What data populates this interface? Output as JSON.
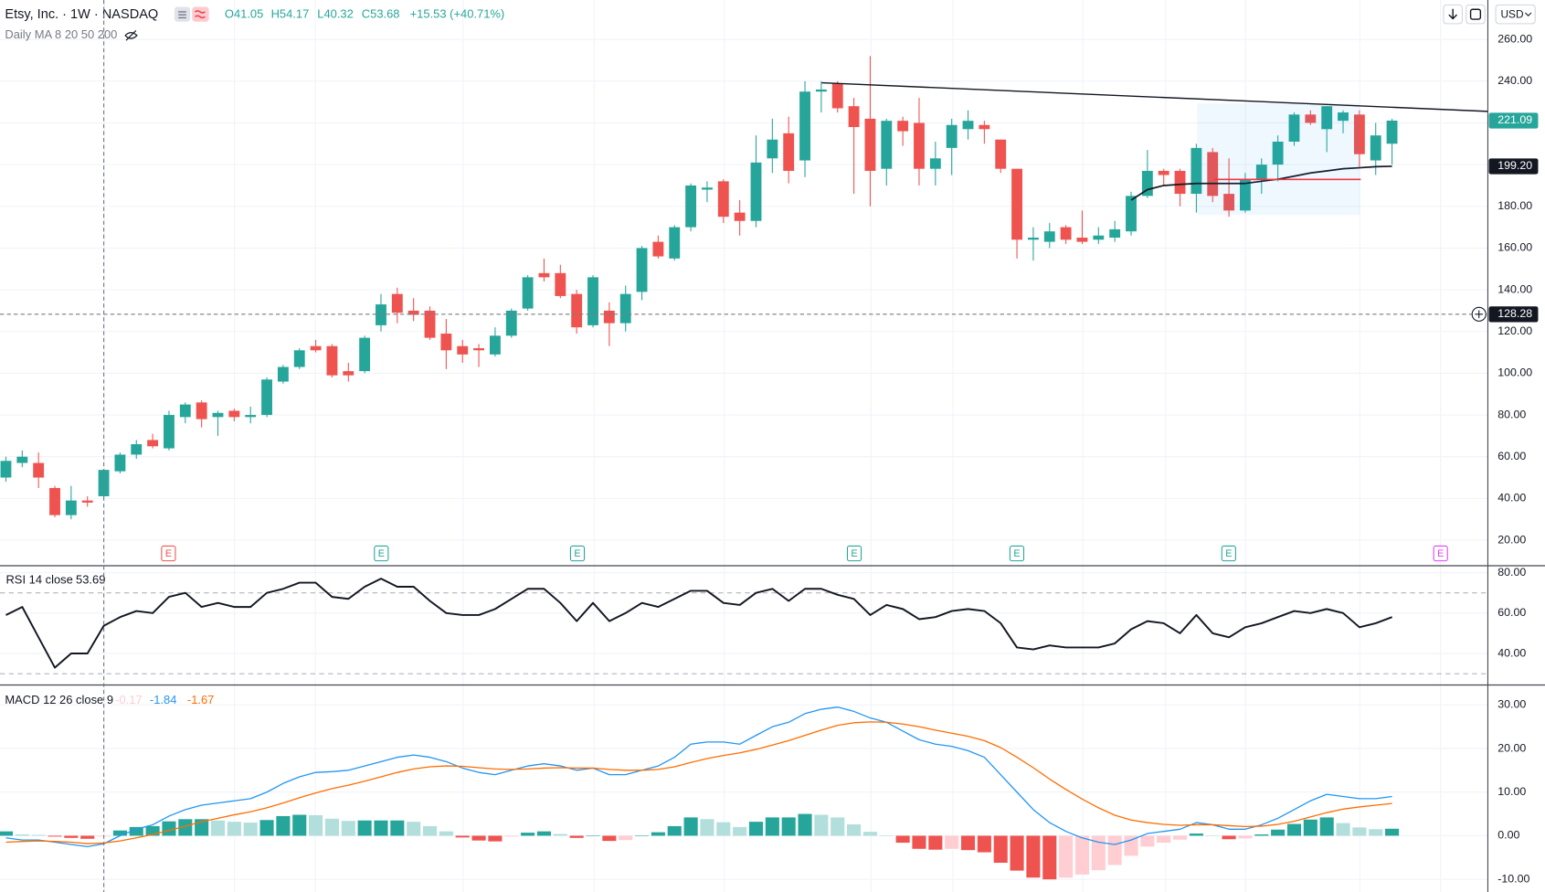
{
  "chart_data": [
    {
      "type": "candlestick",
      "title": "Etsy, Inc. · 1W · NASDAQ",
      "legend": [
        "O41.05",
        "H54.17",
        "L40.32",
        "C53.68",
        "+15.53 (+40.71%)"
      ],
      "currency": "USD",
      "up_color": "#26a69a",
      "down_color": "#ef5350",
      "open": [
        50,
        57,
        57,
        45,
        32,
        39,
        41.05,
        53,
        61,
        68,
        64,
        79,
        86,
        79,
        82,
        79,
        80,
        96,
        103,
        113,
        113,
        101,
        101,
        123,
        138,
        130,
        130,
        119,
        113,
        112,
        109,
        118,
        131,
        148,
        148,
        138,
        123,
        130,
        124,
        139,
        163,
        155,
        170,
        188,
        192,
        177,
        173,
        203,
        215,
        202,
        235,
        239,
        228,
        222,
        198,
        221,
        220,
        198,
        208,
        217,
        219,
        212,
        198,
        164,
        163,
        170,
        165,
        164,
        165,
        168,
        185,
        197,
        197,
        186,
        206,
        186,
        178,
        193,
        200,
        211,
        224,
        217,
        221,
        224,
        202,
        210
      ],
      "high": [
        60,
        63,
        62,
        46,
        46,
        41,
        54.17,
        62,
        68,
        71,
        82,
        86,
        87,
        82,
        83,
        84,
        98,
        104,
        112,
        116,
        114,
        105,
        118,
        138,
        141,
        136,
        132,
        126,
        116,
        114,
        122,
        131,
        147,
        155,
        152,
        140,
        147,
        134,
        142,
        161,
        166,
        171,
        191,
        192,
        193,
        183,
        214,
        222,
        223,
        240,
        240,
        240,
        232,
        252,
        222,
        223,
        232,
        211,
        222,
        226,
        221,
        212,
        198,
        170,
        172,
        171,
        178,
        170,
        173,
        187,
        207,
        198,
        198,
        210,
        208,
        203,
        196,
        203,
        214,
        225,
        226,
        228,
        226,
        226,
        220,
        222
      ],
      "low": [
        48,
        55,
        45,
        31,
        30,
        36,
        40.32,
        52,
        59,
        64,
        63,
        76,
        74,
        70,
        77,
        76,
        79,
        95,
        102,
        110,
        98,
        96,
        100,
        120,
        124,
        125,
        116,
        102,
        105,
        103,
        108,
        117,
        130,
        144,
        136,
        119,
        122,
        113,
        120,
        135,
        155,
        154,
        168,
        182,
        172,
        166,
        170,
        196,
        191,
        194,
        225,
        225,
        186,
        180,
        190,
        209,
        190,
        190,
        195,
        212,
        210,
        196,
        155,
        154,
        160,
        162,
        162,
        162,
        163,
        166,
        184,
        190,
        180,
        177,
        182,
        175,
        177,
        186,
        192,
        209,
        219,
        206,
        215,
        199,
        195,
        200
      ],
      "close": [
        58,
        60,
        50,
        32,
        39,
        38,
        53.68,
        61,
        66,
        65,
        80,
        85,
        78,
        81,
        79,
        80,
        97,
        103,
        111,
        111,
        99,
        99,
        117,
        133,
        129,
        128,
        117,
        111,
        109,
        111,
        118,
        130,
        146,
        146,
        137,
        122,
        146,
        124,
        138,
        160,
        156,
        170,
        190,
        189,
        175,
        173,
        201,
        212,
        197,
        235,
        236,
        227,
        218,
        197,
        221,
        216,
        198,
        203,
        219,
        221,
        217,
        198,
        164,
        165,
        168,
        164,
        163,
        166,
        169,
        185,
        197,
        195,
        186,
        208,
        185,
        178,
        193,
        200,
        211,
        224,
        220,
        228,
        225,
        205,
        214,
        221.09
      ],
      "ma": {
        "name": "Daily MA 8 20 50 200",
        "color": "#131722",
        "last_label": "199.20",
        "values": [
          null,
          null,
          null,
          null,
          null,
          null,
          null,
          null,
          null,
          null,
          null,
          null,
          null,
          null,
          null,
          null,
          null,
          null,
          null,
          null,
          null,
          null,
          null,
          null,
          null,
          null,
          null,
          null,
          null,
          null,
          null,
          null,
          null,
          null,
          null,
          null,
          null,
          null,
          null,
          null,
          null,
          null,
          null,
          null,
          null,
          null,
          null,
          null,
          null,
          null,
          null,
          null,
          null,
          null,
          null,
          null,
          null,
          null,
          null,
          null,
          null,
          null,
          null,
          null,
          null,
          null,
          null,
          null,
          null,
          183,
          188,
          190,
          190.5,
          191,
          191,
          191,
          191,
          192,
          193,
          194.5,
          196,
          197,
          198,
          198.5,
          199,
          199.2
        ]
      },
      "crosshair_price": 128.28,
      "earnings": [
        {
          "label": "E",
          "color": "#ef5350"
        },
        {
          "label": "E",
          "color": "#26a69a"
        },
        {
          "label": "E",
          "color": "#26a69a"
        },
        {
          "label": "E",
          "color": "#26a69a"
        },
        {
          "label": "E",
          "color": "#26a69a"
        },
        {
          "label": "E",
          "color": "#26a69a"
        },
        {
          "label": "E",
          "color": "#e040fb"
        }
      ],
      "ylim": [
        8.2,
        278.9
      ],
      "yticks": [
        {
          "value": 20,
          "label": "20.00"
        },
        {
          "value": 40,
          "label": "40.00"
        },
        {
          "value": 60,
          "label": "60.00"
        },
        {
          "value": 80,
          "label": "80.00"
        },
        {
          "value": 100,
          "label": "100.00"
        },
        {
          "value": 120,
          "label": "120.00"
        },
        {
          "value": 140,
          "label": "140.00"
        },
        {
          "value": 160,
          "label": "160.00"
        },
        {
          "value": 180,
          "label": "180.00"
        },
        {
          "value": 200,
          "label": "200.00"
        },
        {
          "value": 220,
          "label": "220.00"
        },
        {
          "value": 240,
          "label": "240.00"
        },
        {
          "value": 260,
          "label": "260.00"
        }
      ],
      "grid": true
    },
    {
      "type": "line",
      "title": "RSI 14 close",
      "color": "#131722",
      "values": [
        59,
        63,
        48,
        33,
        40,
        40,
        53.69,
        58,
        61,
        60,
        68,
        70,
        63,
        65,
        63,
        63,
        70,
        72,
        75,
        75,
        68,
        67,
        73,
        77,
        73,
        73,
        66,
        60,
        59,
        59,
        62,
        67,
        72,
        72,
        65,
        56,
        65,
        56,
        60,
        65,
        63,
        67,
        71,
        71,
        65,
        64,
        70,
        72,
        66,
        72,
        72,
        69,
        67,
        59,
        64,
        62,
        57,
        58,
        61,
        62,
        61,
        55,
        43,
        42,
        44,
        43,
        43,
        43,
        45,
        52,
        56,
        55,
        50,
        59,
        50,
        48,
        53,
        55,
        58,
        61,
        60,
        62,
        60,
        53,
        55,
        58
      ],
      "levels": [
        70,
        30
      ],
      "ylim": [
        25.4,
        82.9
      ],
      "yticks": [
        {
          "value": 40,
          "label": "40.00"
        },
        {
          "value": 60,
          "label": "60.00"
        },
        {
          "value": 80,
          "label": "80.00"
        }
      ],
      "grid": true
    },
    {
      "type": "combo",
      "title": "MACD 12 26 close 9",
      "histogram": {
        "colors": [
          "#26a69a",
          "#b2dfdb",
          "#ef5350",
          "#ffcdd2"
        ],
        "values": [
          1.0,
          0.3,
          0.2,
          -0.2,
          -0.5,
          -0.7,
          -0.17,
          1.2,
          2.0,
          2.2,
          3.3,
          3.8,
          3.8,
          3.5,
          3.2,
          3.0,
          3.6,
          4.5,
          4.8,
          4.7,
          3.9,
          3.4,
          3.5,
          3.5,
          3.5,
          3.2,
          2.2,
          1.0,
          -0.4,
          -1.1,
          -1.3,
          -0.2,
          0.7,
          1.0,
          0.4,
          -0.5,
          0,
          -1.2,
          -1.0,
          0,
          0.8,
          2.2,
          4.2,
          3.8,
          3.1,
          2.0,
          3.2,
          4.2,
          4.2,
          5.0,
          4.8,
          4.2,
          2.6,
          0.9,
          0,
          -1.6,
          -3.0,
          -3.2,
          -3.0,
          -3.3,
          -3.8,
          -6.2,
          -8.0,
          -9.6,
          -10.0,
          -9.6,
          -8.9,
          -7.9,
          -6.7,
          -4.6,
          -2.5,
          -1.6,
          -0.9,
          0.5,
          0,
          -0.8,
          -0.6,
          0.3,
          1.4,
          2.7,
          3.7,
          4.2,
          2.9,
          1.9,
          1.5,
          1.6
        ]
      },
      "macd": {
        "color": "#2196f3",
        "values": [
          -0.5,
          -1,
          -1,
          -1.5,
          -2,
          -2.5,
          -1.84,
          0,
          1.5,
          2.5,
          4.5,
          6,
          7,
          7.5,
          8,
          8.5,
          10,
          12,
          13.5,
          14.5,
          14.7,
          15,
          16,
          17,
          18,
          18.5,
          18,
          17,
          15.5,
          14.5,
          14,
          15,
          16,
          16.5,
          16,
          15,
          15.5,
          14,
          14,
          15,
          16,
          18,
          21,
          21.5,
          21.5,
          21,
          23,
          25,
          26,
          28,
          29,
          29.5,
          28.5,
          27,
          26,
          24,
          22,
          21,
          20.5,
          19.5,
          18,
          14,
          10,
          6,
          3,
          1,
          -0.5,
          -1.5,
          -2,
          -1,
          0.5,
          1,
          1.5,
          3,
          2.5,
          1.5,
          1.5,
          2.5,
          4,
          6,
          8,
          9.5,
          9,
          8.5,
          8.5,
          9
        ]
      },
      "signal": {
        "color": "#ff6d00",
        "values": [
          -1.5,
          -1.3,
          -1.2,
          -1.3,
          -1.5,
          -1.8,
          -1.67,
          -1.2,
          -0.5,
          0.3,
          1.2,
          2.2,
          3.2,
          4,
          4.8,
          5.5,
          6.4,
          7.5,
          8.7,
          9.8,
          10.8,
          11.6,
          12.5,
          13.5,
          14.5,
          15.3,
          15.8,
          16,
          15.9,
          15.6,
          15.3,
          15.2,
          15.3,
          15.5,
          15.6,
          15.5,
          15.5,
          15.2,
          15,
          15,
          15.2,
          15.8,
          16.8,
          17.7,
          18.4,
          19,
          19.8,
          20.8,
          21.8,
          23,
          24.2,
          25.3,
          25.9,
          26.1,
          26,
          25.6,
          25,
          24.2,
          23.5,
          22.8,
          21.8,
          20.2,
          18,
          15.6,
          13,
          10.6,
          8.4,
          6.4,
          4.7,
          3.6,
          3,
          2.6,
          2.4,
          2.5,
          2.5,
          2.3,
          2.1,
          2.2,
          2.6,
          3.3,
          4.3,
          5.3,
          6.1,
          6.6,
          7,
          7.4
        ]
      },
      "ylim": [
        -12.9,
        34.1
      ],
      "yticks": [
        {
          "value": -10,
          "label": "-10.00"
        },
        {
          "value": 0,
          "label": "0.00"
        },
        {
          "value": 10,
          "label": "10.00"
        },
        {
          "value": 20,
          "label": "20.00"
        },
        {
          "value": 30,
          "label": "30.00"
        }
      ],
      "grid": true
    }
  ]
}
